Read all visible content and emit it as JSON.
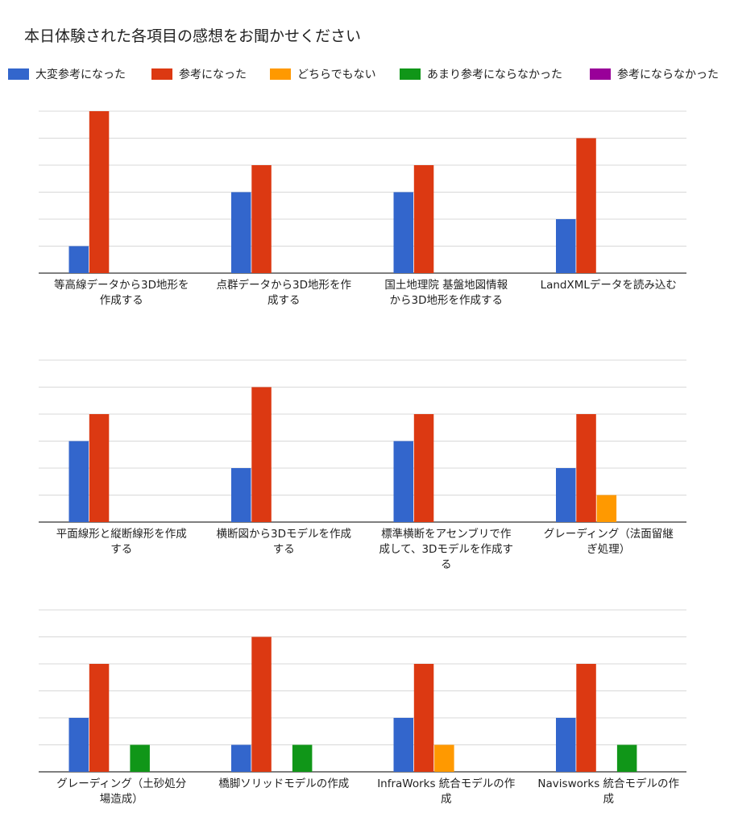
{
  "title": "本日体験された各項目の感想をお聞かせください",
  "colors": {
    "very_helpful": "#3366cc",
    "helpful": "#dc3912",
    "neutral": "#ff9900",
    "not_very_helpful": "#109618",
    "not_helpful": "#990099"
  },
  "legend": [
    {
      "label": "大変参考になった",
      "color_key": "very_helpful"
    },
    {
      "label": "参考になった",
      "color_key": "helpful"
    },
    {
      "label": "どちらでもない",
      "color_key": "neutral"
    },
    {
      "label": "あまり参考にならなかった",
      "color_key": "not_very_helpful"
    },
    {
      "label": "参考にならなかった",
      "color_key": "not_helpful"
    }
  ],
  "chart_data": [
    {
      "type": "bar",
      "ylim": [
        0,
        6
      ],
      "grid": true,
      "legend_position": "top",
      "categories": [
        [
          "等高線データから3D地形を",
          "作成する"
        ],
        [
          "点群データから3D地形を作",
          "成する"
        ],
        [
          "国土地理院 基盤地図情報",
          "から3D地形を作成する"
        ],
        [
          "LandXMLデータを読み込む"
        ]
      ],
      "series": [
        {
          "name": "大変参考になった",
          "values": [
            1,
            3,
            3,
            2
          ]
        },
        {
          "name": "参考になった",
          "values": [
            6,
            4,
            4,
            5
          ]
        },
        {
          "name": "どちらでもない",
          "values": [
            0,
            0,
            0,
            0
          ]
        },
        {
          "name": "あまり参考にならなかった",
          "values": [
            0,
            0,
            0,
            0
          ]
        },
        {
          "name": "参考にならなかった",
          "values": [
            0,
            0,
            0,
            0
          ]
        }
      ]
    },
    {
      "type": "bar",
      "ylim": [
        0,
        6
      ],
      "grid": true,
      "legend_position": "top",
      "categories": [
        [
          "平面線形と縦断線形を作成",
          "する"
        ],
        [
          "横断図から3Dモデルを作成",
          "する"
        ],
        [
          "標準横断をアセンブリで作",
          "成して、3Dモデルを作成す",
          "る"
        ],
        [
          "グレーディング（法面留継",
          "ぎ処理）"
        ]
      ],
      "series": [
        {
          "name": "大変参考になった",
          "values": [
            3,
            2,
            3,
            2
          ]
        },
        {
          "name": "参考になった",
          "values": [
            4,
            5,
            4,
            4
          ]
        },
        {
          "name": "どちらでもない",
          "values": [
            0,
            0,
            0,
            1
          ]
        },
        {
          "name": "あまり参考にならなかった",
          "values": [
            0,
            0,
            0,
            0
          ]
        },
        {
          "name": "参考にならなかった",
          "values": [
            0,
            0,
            0,
            0
          ]
        }
      ]
    },
    {
      "type": "bar",
      "ylim": [
        0,
        6
      ],
      "grid": true,
      "legend_position": "top",
      "categories": [
        [
          "グレーディング（土砂処分",
          "場造成）"
        ],
        [
          "橋脚ソリッドモデルの作成"
        ],
        [
          "InfraWorks 統合モデルの作",
          "成"
        ],
        [
          "Navisworks 統合モデルの作",
          "成"
        ]
      ],
      "series": [
        {
          "name": "大変参考になった",
          "values": [
            2,
            1,
            2,
            2
          ]
        },
        {
          "name": "参考になった",
          "values": [
            4,
            5,
            4,
            4
          ]
        },
        {
          "name": "どちらでもない",
          "values": [
            0,
            0,
            1,
            0
          ]
        },
        {
          "name": "あまり参考にならなかった",
          "values": [
            1,
            1,
            0,
            1
          ]
        },
        {
          "name": "参考にならなかった",
          "values": [
            0,
            0,
            0,
            0
          ]
        }
      ]
    }
  ]
}
